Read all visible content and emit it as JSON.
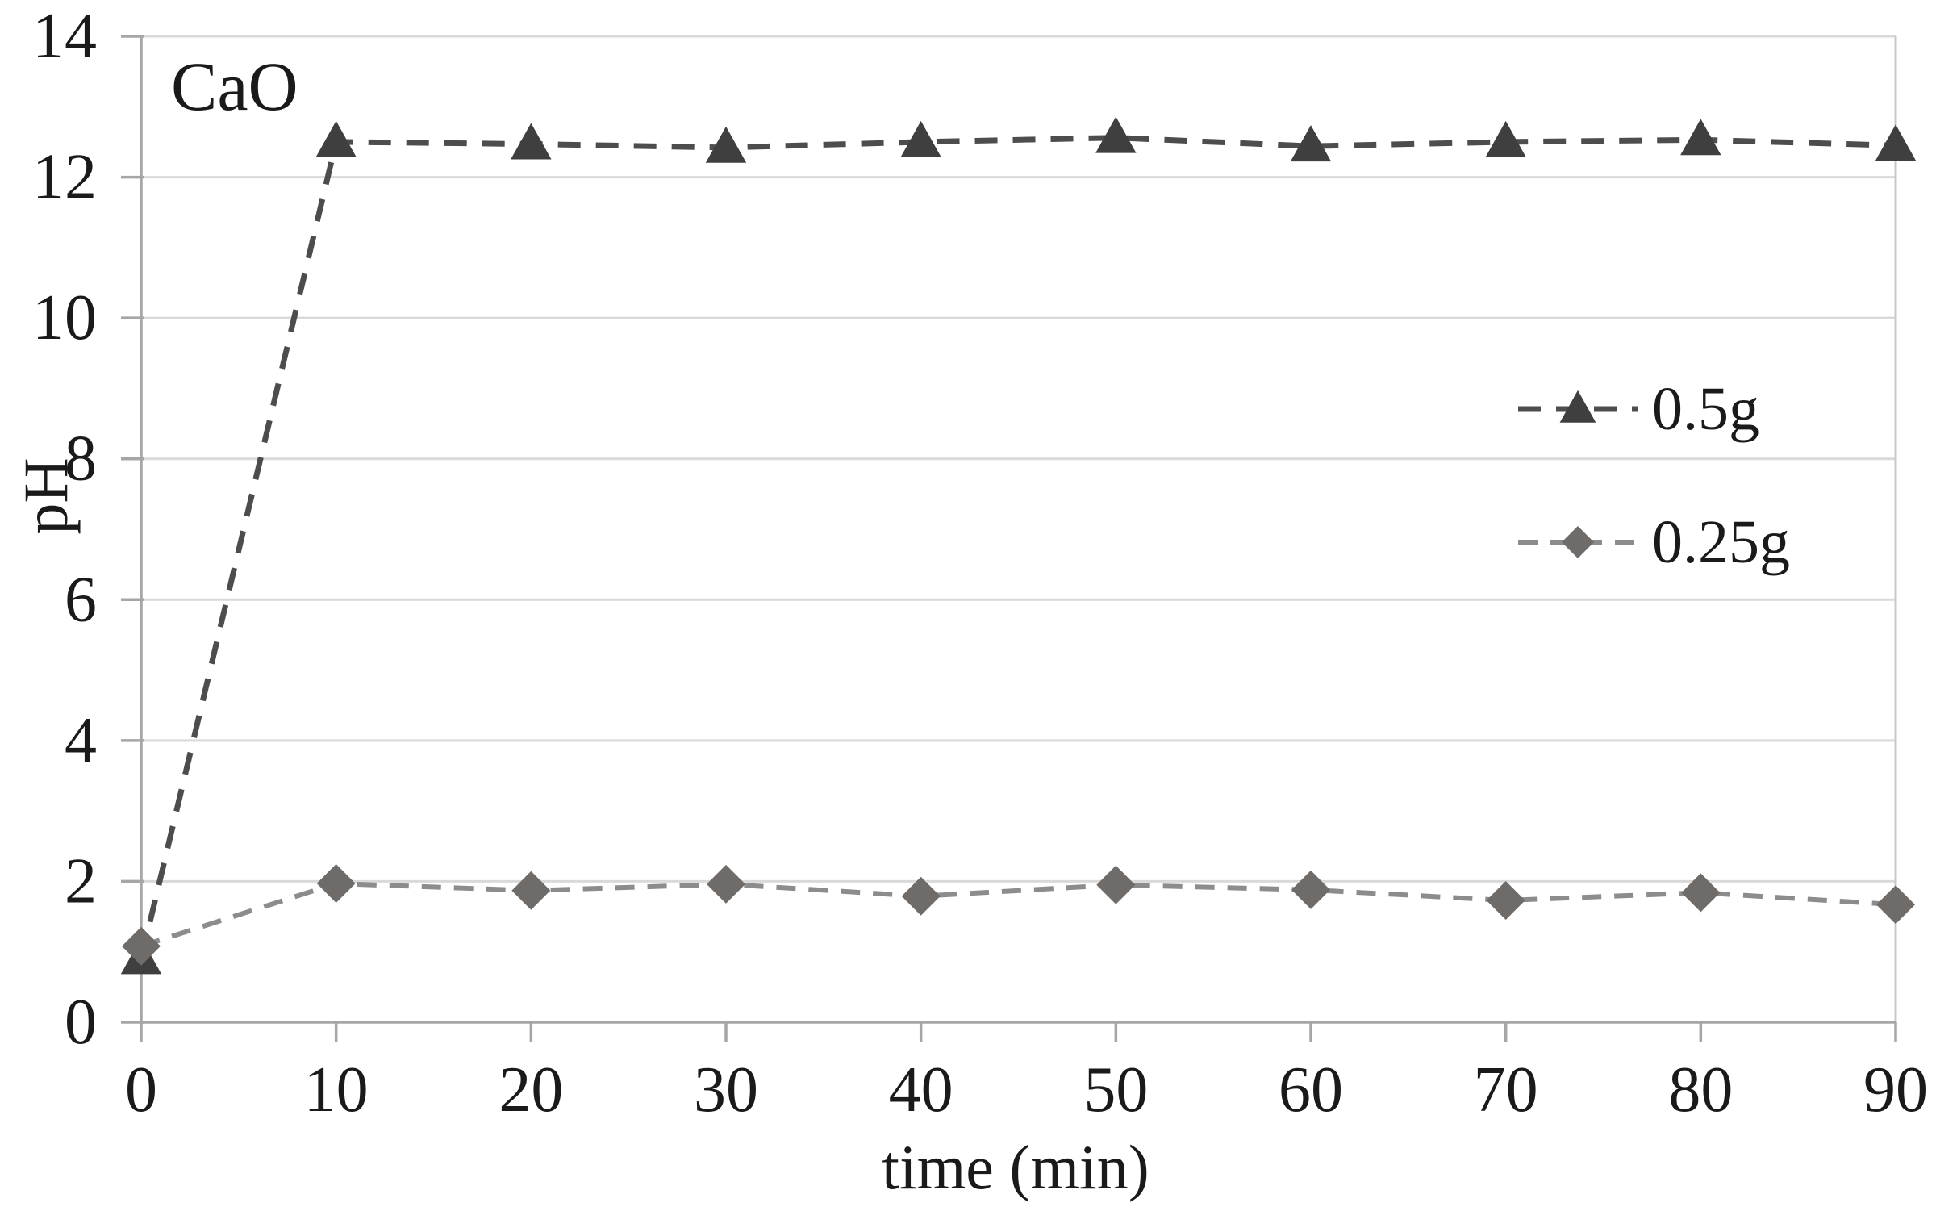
{
  "figure": {
    "background": "#ffffff"
  },
  "chart_data": {
    "type": "line",
    "title": "CaO",
    "xlabel": "time (min)",
    "ylabel": "pH",
    "xlim": [
      0,
      90
    ],
    "ylim": [
      0,
      14
    ],
    "x_ticks": [
      0,
      10,
      20,
      30,
      40,
      50,
      60,
      70,
      80,
      90
    ],
    "y_ticks": [
      0,
      2,
      4,
      6,
      8,
      10,
      12,
      14
    ],
    "grid": "horizontal gridlines on",
    "legend_position": "inside top-right",
    "x": [
      0,
      10,
      20,
      30,
      40,
      50,
      60,
      70,
      80,
      90
    ],
    "series": [
      {
        "name": "0.5g",
        "marker": "triangle",
        "line_style": "dashed",
        "line_color": "#4d4d4d",
        "marker_color": "#3f3f3f",
        "dash": [
          28,
          19
        ],
        "line_width": 7,
        "values": [
          0.9,
          12.5,
          12.47,
          12.42,
          12.5,
          12.56,
          12.44,
          12.5,
          12.53,
          12.45
        ]
      },
      {
        "name": "0.25g",
        "marker": "diamond",
        "line_style": "dashed",
        "line_color": "#8c8c8c",
        "marker_color": "#6f6b69",
        "dash": [
          24,
          16
        ],
        "line_width": 6,
        "values": [
          1.08,
          1.97,
          1.87,
          1.96,
          1.79,
          1.95,
          1.88,
          1.73,
          1.84,
          1.67
        ]
      }
    ],
    "colors": {
      "gridline": "#d9d9d9",
      "axis": "#a6a6a6",
      "plot_border_right": "#c8c8c8",
      "text": "#1a1a1a"
    }
  }
}
